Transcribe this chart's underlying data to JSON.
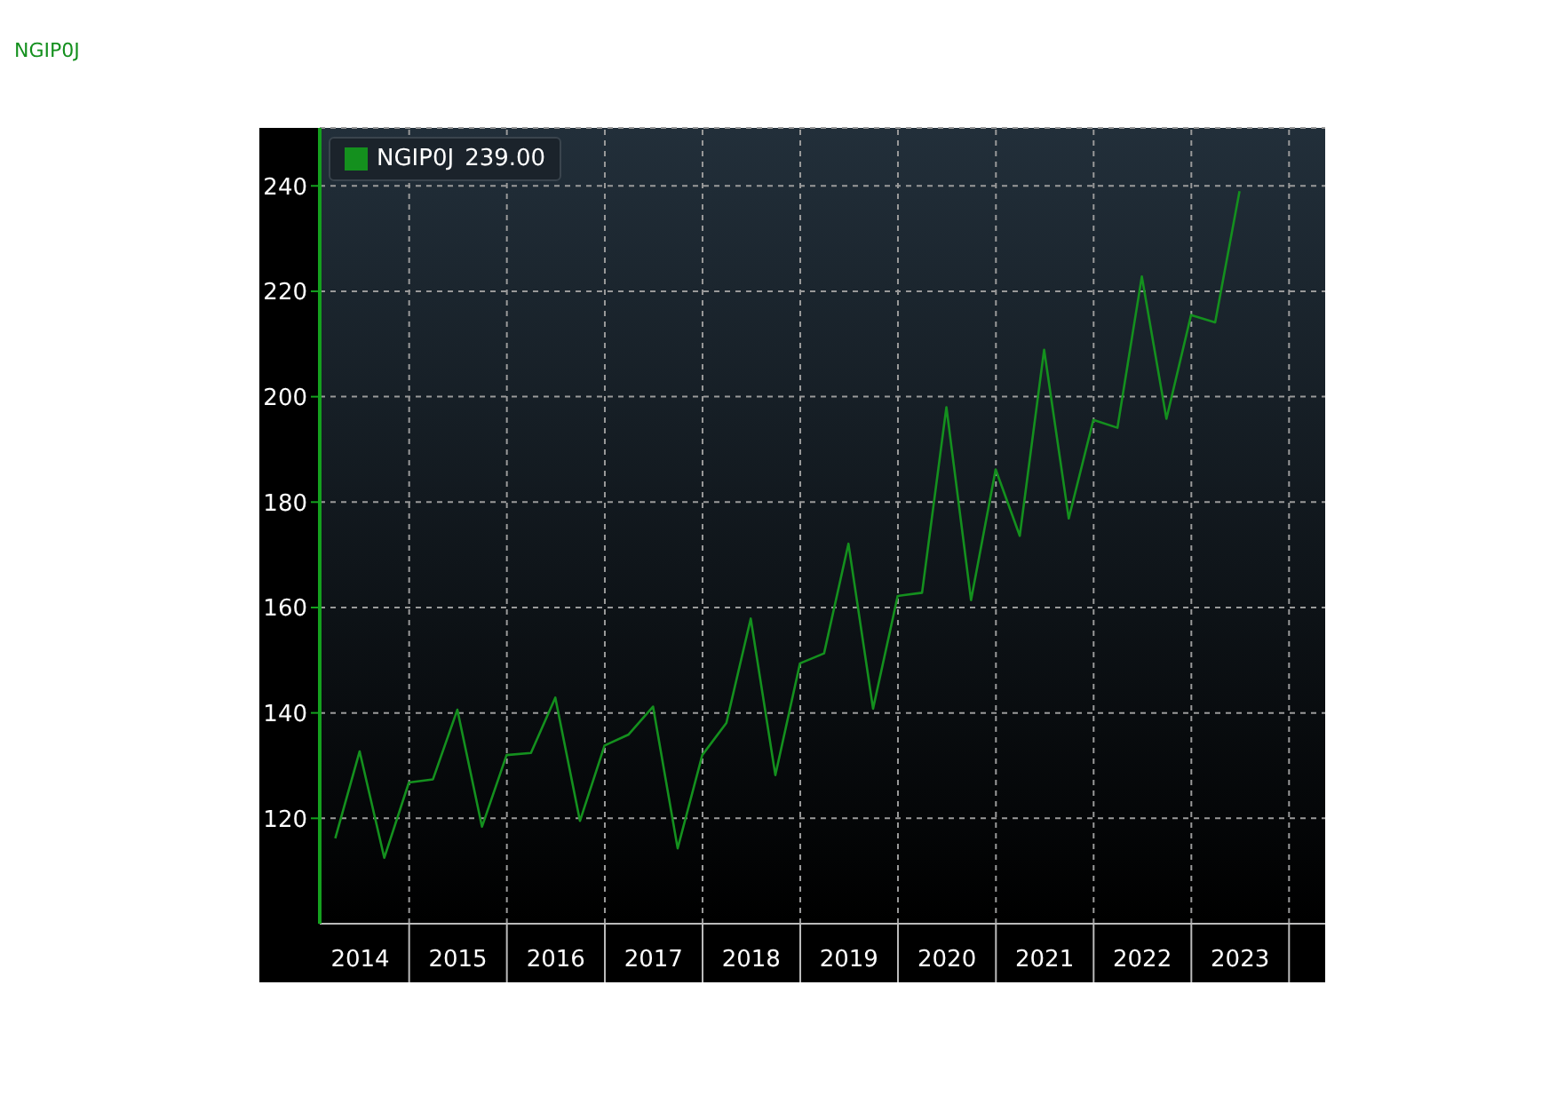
{
  "chart_data": {
    "type": "line",
    "title": "NGIP0J",
    "legend": "top left",
    "grid": true,
    "marker": "none",
    "annotations": [
      "239.00"
    ],
    "x": [
      "2014-03-31",
      "2014-06-30",
      "2014-09-30",
      "2014-12-31",
      "2015-03-31",
      "2015-06-30",
      "2015-09-30",
      "2015-12-31",
      "2016-03-31",
      "2016-06-30",
      "2016-09-30",
      "2016-12-31",
      "2017-03-31",
      "2017-06-30",
      "2017-09-30",
      "2017-12-31",
      "2018-03-31",
      "2018-06-30",
      "2018-09-30",
      "2018-12-31",
      "2019-03-31",
      "2019-06-30",
      "2019-09-30",
      "2019-12-31",
      "2020-03-31",
      "2020-06-30",
      "2020-09-30",
      "2020-12-31",
      "2021-03-31",
      "2021-06-30",
      "2021-09-30",
      "2021-12-31",
      "2022-03-31",
      "2022-06-30",
      "2022-09-30",
      "2022-12-31",
      "2023-03-31",
      "2023-06-30"
    ],
    "series": [
      {
        "name": "NGIP0J",
        "color": "#14901e",
        "values": [
          116.2,
          132.7,
          112.5,
          126.8,
          127.4,
          140.6,
          118.4,
          132.0,
          132.4,
          142.9,
          119.5,
          133.8,
          135.9,
          141.2,
          114.3,
          132.0,
          138.1,
          157.9,
          128.2,
          149.4,
          151.3,
          172.1,
          140.8,
          162.2,
          162.8,
          198.0,
          161.4,
          186.2,
          173.6,
          208.9,
          176.9,
          195.6,
          194.1,
          222.8,
          195.8,
          215.5,
          214.1,
          239
        ]
      }
    ],
    "xlim": [
      "2014-02-01",
      "2024-05-15"
    ],
    "xticks": [
      {
        "value": "2014-07-02",
        "label": "2014"
      },
      {
        "value": "2015-07-02",
        "label": "2015"
      },
      {
        "value": "2016-07-02",
        "label": "2016"
      },
      {
        "value": "2017-07-02",
        "label": "2017"
      },
      {
        "value": "2018-07-02",
        "label": "2018"
      },
      {
        "value": "2019-07-02",
        "label": "2019"
      },
      {
        "value": "2020-07-02",
        "label": "2020"
      },
      {
        "value": "2021-07-02",
        "label": "2021"
      },
      {
        "value": "2022-07-02",
        "label": "2022"
      },
      {
        "value": "2023-07-02",
        "label": "2023"
      },
      {
        "value": "2015-01-01",
        "label": null
      },
      {
        "value": "2016-01-01",
        "label": null
      },
      {
        "value": "2017-01-01",
        "label": null
      },
      {
        "value": "2018-01-01",
        "label": null
      },
      {
        "value": "2019-01-01",
        "label": null
      },
      {
        "value": "2020-01-01",
        "label": null
      },
      {
        "value": "2021-01-01",
        "label": null
      },
      {
        "value": "2022-01-01",
        "label": null
      },
      {
        "value": "2023-01-01",
        "label": null
      },
      {
        "value": "2024-01-01",
        "label": null
      }
    ],
    "ylim": [
      100,
      251
    ],
    "yticks": [
      120,
      140,
      160,
      180,
      200,
      220,
      240
    ]
  }
}
